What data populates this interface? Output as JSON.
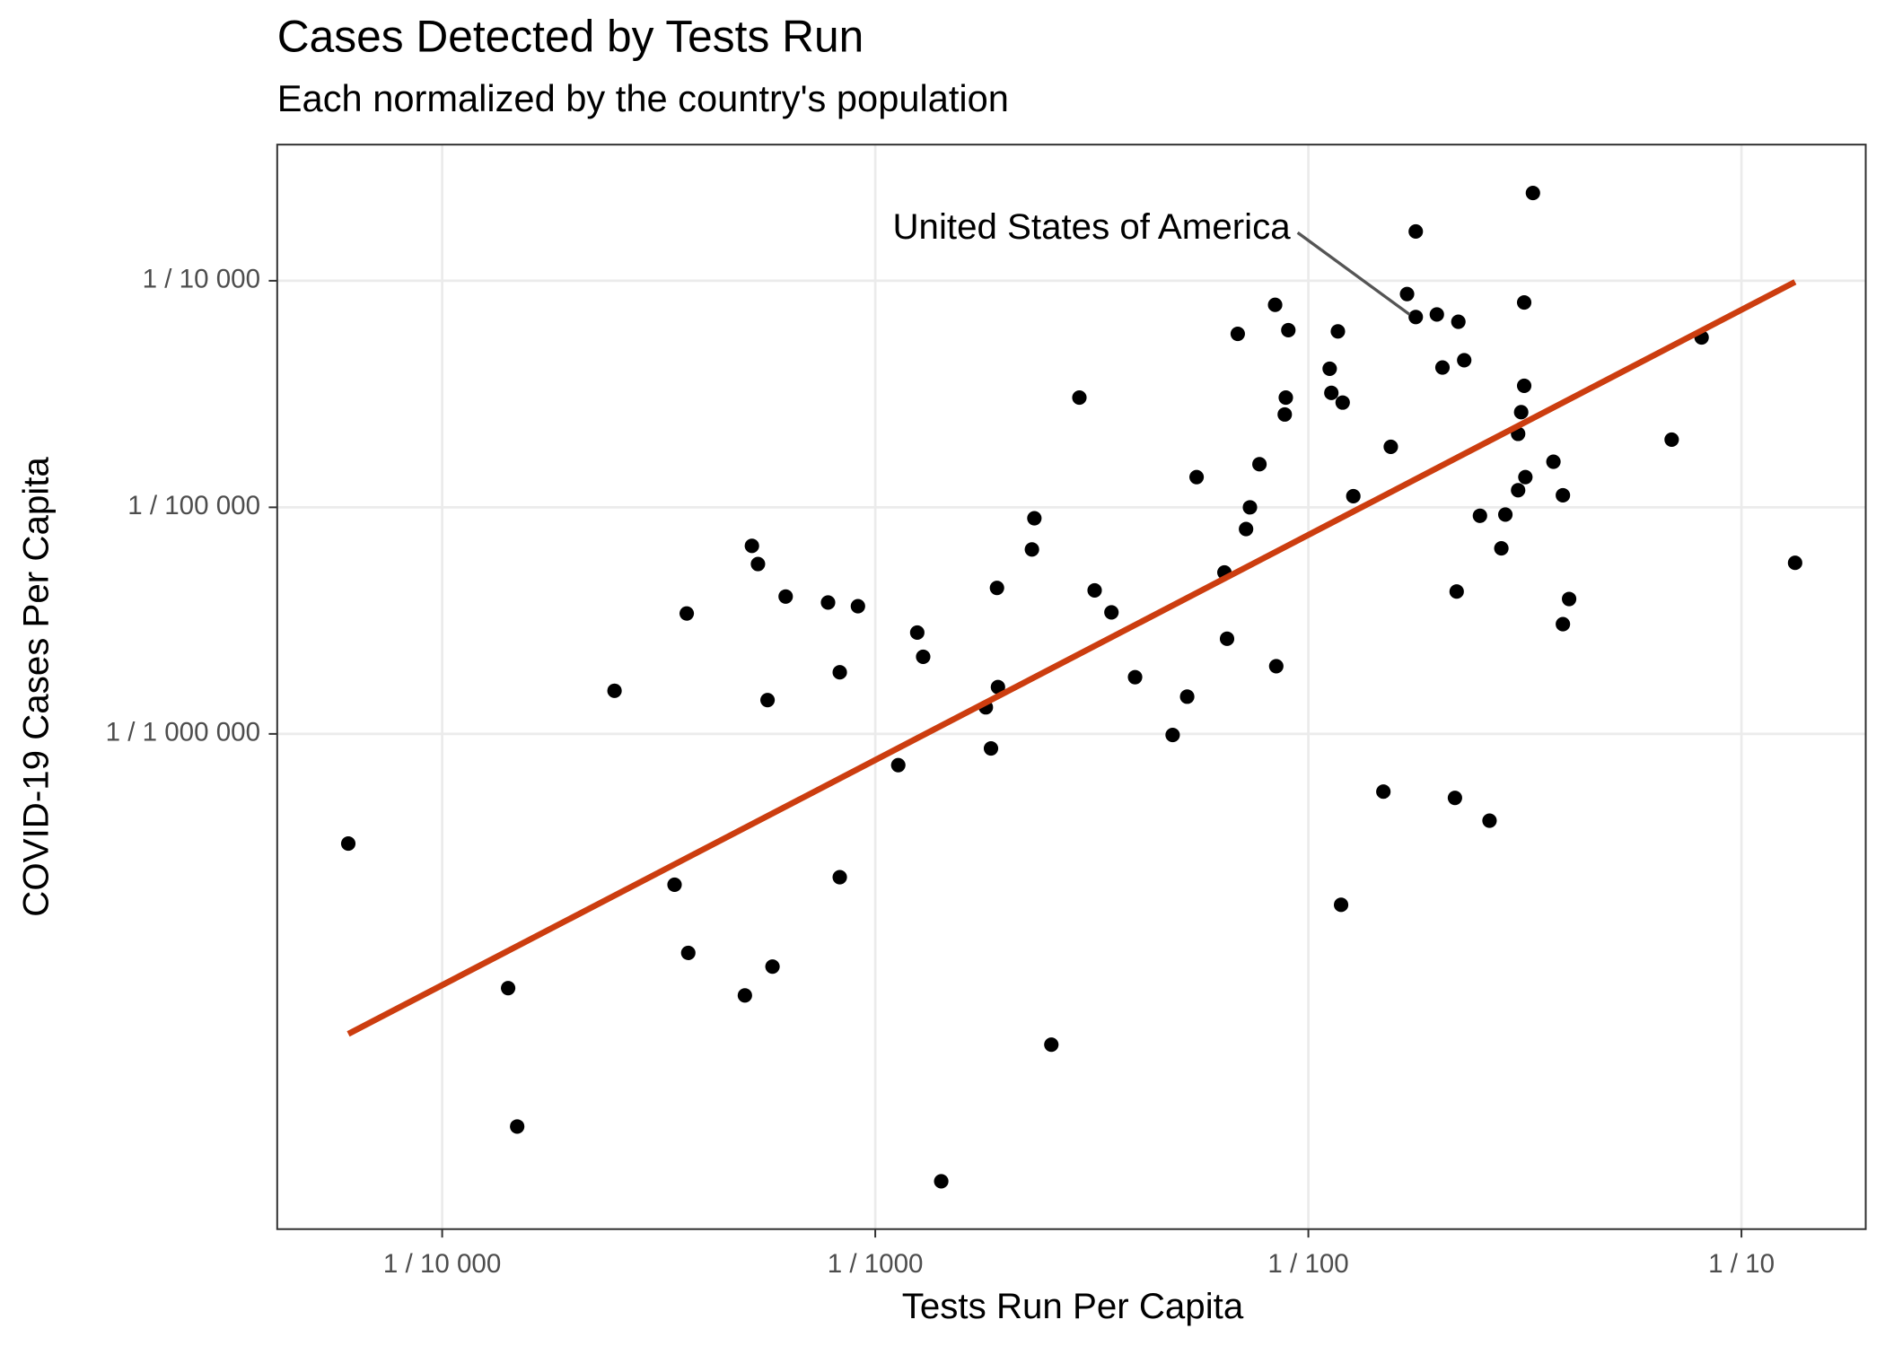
{
  "chart_data": {
    "type": "scatter",
    "title": "Cases Detected by Tests Run",
    "subtitle": "Each normalized by the country's population",
    "x_label": "Tests Run Per Capita",
    "y_label": "COVID-19 Cases Per Capita",
    "log_x": true,
    "log_y": true,
    "grid": true,
    "xlim": [
      4.16e-05,
      0.1936
    ],
    "ylim": [
      6.52e-09,
      0.000399
    ],
    "xticks": [
      {
        "value": 0.0001,
        "label": "1 / 10 000"
      },
      {
        "value": 0.001,
        "label": "1 / 1000"
      },
      {
        "value": 0.01,
        "label": "1 / 100"
      },
      {
        "value": 0.1,
        "label": "1 / 10"
      }
    ],
    "yticks": [
      {
        "value": 1e-06,
        "label": "1 / 1 000 000"
      },
      {
        "value": 1e-05,
        "label": "1 / 100 000"
      },
      {
        "value": 0.0001,
        "label": "1 / 10 000"
      }
    ],
    "color": "#000000",
    "x": [
      0.033,
      0.0177,
      0.0169,
      0.0177,
      0.0198,
      0.0222,
      0.0315,
      0.00838,
      0.00687,
      0.00899,
      0.0117,
      0.0809,
      0.0204,
      0.0229,
      0.0112,
      0.0113,
      0.012,
      0.00296,
      0.00887,
      0.00882,
      0.0315,
      0.031,
      0.0305,
      0.069,
      0.0155,
      0.00771,
      0.0368,
      0.00552,
      0.0317,
      0.0305,
      0.0127,
      0.0387,
      0.00733,
      0.0249,
      0.0285,
      0.00233,
      0.00718,
      0.000519,
      0.0023,
      0.0279,
      0.133,
      0.000536,
      0.0064,
      0.00191,
      0.00321,
      0.000621,
      0.000778,
      0.000912,
      0.022,
      0.04,
      0.000367,
      0.00351,
      0.0387,
      0.00125,
      0.00649,
      0.00129,
      0.000828,
      0.00843,
      0.00398,
      0.00025,
      0.00192,
      0.00525,
      0.000564,
      0.0018,
      0.00486,
      0.00185,
      0.00113,
      0.0149,
      0.0218,
      0.0262,
      6.07e-05,
      0.000828,
      0.000344,
      0.0119,
      0.00037,
      0.000579,
      0.000142,
      0.0005,
      0.00255,
      0.000149,
      0.00142
    ],
    "y": [
      0.000244,
      0.000165,
      8.74e-05,
      6.92e-05,
      7.1e-05,
      6.59e-05,
      8.02e-05,
      7.83e-05,
      5.83e-05,
      6.05e-05,
      5.98e-05,
      5.62e-05,
      4.14e-05,
      4.46e-05,
      4.09e-05,
      3.2e-05,
      2.9e-05,
      3.05e-05,
      3.05e-05,
      2.57e-05,
      3.44e-05,
      2.63e-05,
      2.11e-05,
      1.99e-05,
      1.85e-05,
      1.55e-05,
      1.59e-05,
      1.36e-05,
      1.36e-05,
      1.19e-05,
      1.12e-05,
      1.13e-05,
      1e-05,
      9.18e-06,
      9.29e-06,
      8.95e-06,
      8.02e-06,
      6.76e-06,
      6.52e-06,
      6.59e-06,
      5.69e-06,
      5.62e-06,
      5.16e-06,
      4.41e-06,
      4.3e-06,
      4.04e-06,
      3.8e-06,
      3.66e-06,
      4.25e-06,
      3.94e-06,
      3.4e-06,
      3.44e-06,
      3.05e-06,
      2.8e-06,
      2.63e-06,
      2.19e-06,
      1.87e-06,
      1.99e-06,
      1.78e-06,
      1.55e-06,
      1.61e-06,
      1.46e-06,
      1.41e-06,
      1.31e-06,
      9.89e-07,
      8.63e-07,
      7.28e-07,
      5.56e-07,
      5.22e-07,
      4.14e-07,
      3.28e-07,
      2.33e-07,
      2.16e-07,
      1.76e-07,
      1.08e-07,
      9.4e-08,
      7.55e-08,
      7.01e-08,
      4.25e-08,
      1.85e-08,
      1.06e-08
    ],
    "trend": {
      "color": "#cc3d0f",
      "x": [
        6.07e-05,
        0.133
      ],
      "y": [
        4.74e-08,
        9.88e-05
      ]
    },
    "annotation": {
      "text": "United States of America",
      "x": 0.0177,
      "y": 6.92e-05
    }
  }
}
